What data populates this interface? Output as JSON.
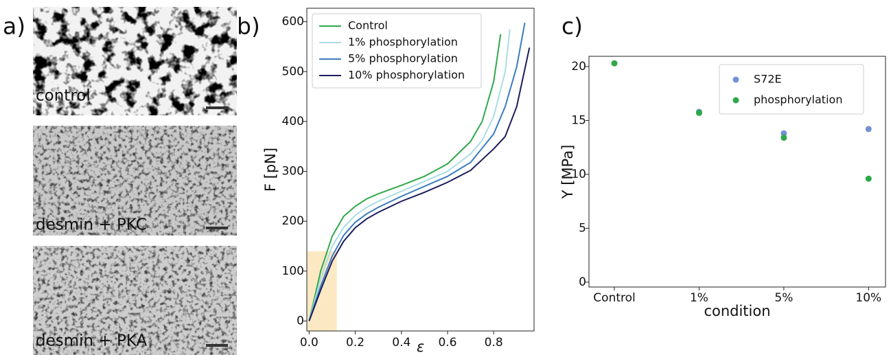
{
  "figure": {
    "micrographs": {
      "label": "a)",
      "captions": [
        "control",
        "desmin + PKC",
        "desmin + PKA"
      ]
    }
  },
  "chart_data": [
    {
      "type": "line",
      "panel_label": "b)",
      "x_label": "ε",
      "y_label": "F [pN]",
      "xlim": [
        -0.01,
        0.975
      ],
      "ylim": [
        -20,
        627
      ],
      "xticks": [
        {
          "value": 0,
          "label": "0.0"
        },
        {
          "value": 0.2,
          "label": "0.2"
        },
        {
          "value": 0.4,
          "label": "0.4"
        },
        {
          "value": 0.6,
          "label": "0.6"
        },
        {
          "value": 0.8,
          "label": "0.8"
        }
      ],
      "yticks": [
        0,
        100,
        200,
        300,
        400,
        500,
        600
      ],
      "highlight": {
        "color": "#fbe3b5",
        "x": [
          -0.01,
          0.12
        ],
        "y": [
          -20,
          140
        ]
      },
      "legend": "upper left",
      "series": [
        {
          "name": "Control",
          "color": "#2ea84a",
          "x": [
            0,
            0.05,
            0.1,
            0.15,
            0.2,
            0.25,
            0.3,
            0.4,
            0.5,
            0.6,
            0.7,
            0.75,
            0.8,
            0.83
          ],
          "values": [
            0,
            100,
            170,
            210,
            230,
            245,
            255,
            272,
            290,
            315,
            360,
            400,
            480,
            575
          ]
        },
        {
          "name": "1% phosphorylation",
          "color": "#a9dde3",
          "x": [
            0,
            0.05,
            0.1,
            0.15,
            0.2,
            0.25,
            0.3,
            0.4,
            0.5,
            0.6,
            0.7,
            0.75,
            0.8,
            0.85,
            0.87
          ],
          "values": [
            0,
            85,
            150,
            188,
            212,
            228,
            240,
            260,
            280,
            300,
            335,
            362,
            410,
            500,
            585
          ]
        },
        {
          "name": "5% phosphorylation",
          "color": "#3a7cc0",
          "x": [
            0,
            0.05,
            0.1,
            0.15,
            0.2,
            0.25,
            0.3,
            0.4,
            0.5,
            0.6,
            0.7,
            0.8,
            0.85,
            0.9,
            0.935
          ],
          "values": [
            0,
            70,
            130,
            172,
            198,
            215,
            228,
            250,
            270,
            290,
            318,
            375,
            430,
            510,
            598
          ]
        },
        {
          "name": "10% phosphorylation",
          "color": "#1b1b5c",
          "x": [
            0,
            0.05,
            0.1,
            0.15,
            0.2,
            0.25,
            0.3,
            0.4,
            0.5,
            0.6,
            0.7,
            0.8,
            0.85,
            0.9,
            0.955
          ],
          "values": [
            0,
            62,
            120,
            160,
            187,
            205,
            218,
            240,
            258,
            278,
            302,
            345,
            370,
            430,
            548
          ]
        }
      ]
    },
    {
      "type": "scatter",
      "panel_label": "c)",
      "x_label": "condition",
      "y_label": "Y [MPa]",
      "categories": [
        "Control",
        "1%",
        "5%",
        "10%"
      ],
      "ylim": [
        -0.45,
        20.95
      ],
      "yticks": [
        0,
        5,
        10,
        15,
        20
      ],
      "legend": "upper right",
      "series": [
        {
          "name": "S72E",
          "color": "#7390d2",
          "values": [
            null,
            15.8,
            13.8,
            14.2
          ]
        },
        {
          "name": "phosphorylation",
          "color": "#2ea84a",
          "values": [
            20.3,
            15.7,
            13.4,
            9.6
          ]
        }
      ]
    }
  ]
}
